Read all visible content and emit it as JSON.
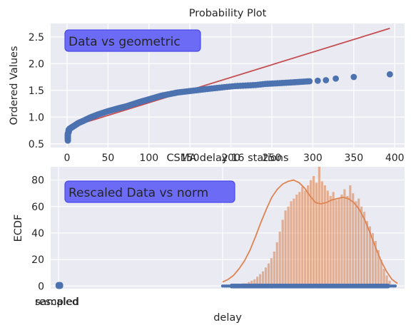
{
  "chart_data": [
    {
      "type": "scatter",
      "title": "Probability Plot",
      "xlabel": "",
      "ylabel": "Ordered Values",
      "xlim": [
        -20,
        412
      ],
      "ylim": [
        0.43,
        2.75
      ],
      "xticks": [
        "0",
        "50",
        "100",
        "150",
        "200",
        "250",
        "300",
        "350",
        "400"
      ],
      "xtick_values": [
        0,
        50,
        100,
        150,
        200,
        250,
        300,
        350,
        400
      ],
      "yticks": [
        "0.5",
        "1.0",
        "1.5",
        "2.0",
        "2.5"
      ],
      "ytick_values": [
        0.5,
        1.0,
        1.5,
        2.0,
        2.5
      ],
      "annotation": "Data vs geometric",
      "grid": true,
      "fit_line": {
        "x": [
          1,
          394
        ],
        "y": [
          0.8,
          2.66
        ],
        "color": "#c44e52"
      },
      "points_color": "#4c72b0",
      "series": [
        {
          "x": [
            1,
            1,
            1,
            1,
            1,
            2,
            2,
            2,
            3,
            3,
            4,
            5,
            6,
            7,
            8,
            10,
            12,
            14,
            17,
            20,
            24,
            28,
            33,
            38,
            44,
            50,
            57,
            64,
            72,
            80,
            88,
            97,
            106,
            115,
            125,
            135,
            146,
            157,
            168,
            180,
            192,
            205,
            218,
            230,
            242,
            254,
            265,
            276,
            286,
            296,
            306,
            316,
            328,
            350,
            394
          ],
          "y": [
            0.56,
            0.6,
            0.63,
            0.66,
            0.69,
            0.72,
            0.74,
            0.76,
            0.77,
            0.78,
            0.79,
            0.8,
            0.81,
            0.82,
            0.83,
            0.85,
            0.87,
            0.89,
            0.91,
            0.93,
            0.96,
            0.99,
            1.02,
            1.05,
            1.08,
            1.11,
            1.14,
            1.17,
            1.2,
            1.24,
            1.28,
            1.32,
            1.36,
            1.4,
            1.43,
            1.46,
            1.48,
            1.5,
            1.52,
            1.54,
            1.56,
            1.58,
            1.59,
            1.6,
            1.62,
            1.63,
            1.64,
            1.65,
            1.66,
            1.67,
            1.68,
            1.69,
            1.72,
            1.75,
            1.8
          ]
        }
      ]
    },
    {
      "type": "bar",
      "title": "CSMA delay 16 stations",
      "xlabel": "delay",
      "ylabel": "ECDF",
      "ylim": [
        -2,
        90
      ],
      "yticks": [
        "0",
        "20",
        "40",
        "60",
        "80"
      ],
      "ytick_values": [
        0,
        20,
        40,
        60,
        80
      ],
      "xticks": [
        "sampled",
        "rescaled"
      ],
      "annotation": "Rescaled Data vs norm",
      "grid": true,
      "hist_color": "#dd8452",
      "kde_color": "#dd8452",
      "rug_color": "#4c72b0",
      "values": [
        1,
        2,
        2,
        3,
        4,
        5,
        7,
        9,
        11,
        14,
        17,
        21,
        26,
        33,
        41,
        50,
        57,
        60,
        64,
        66,
        69,
        71,
        75,
        72,
        76,
        80,
        83,
        78,
        90,
        79,
        76,
        72,
        68,
        71,
        65,
        66,
        69,
        73,
        68,
        76,
        70,
        64,
        66,
        60,
        56,
        49,
        45,
        40,
        34,
        27,
        20,
        13,
        8,
        4
      ],
      "kde": [
        3,
        5,
        8,
        13,
        19,
        27,
        37,
        48,
        58,
        67,
        73,
        77,
        79,
        80,
        78,
        74,
        68,
        63,
        62,
        63,
        65,
        66,
        67,
        66,
        63,
        58,
        50,
        40,
        29,
        19,
        11,
        5,
        2
      ]
    }
  ]
}
